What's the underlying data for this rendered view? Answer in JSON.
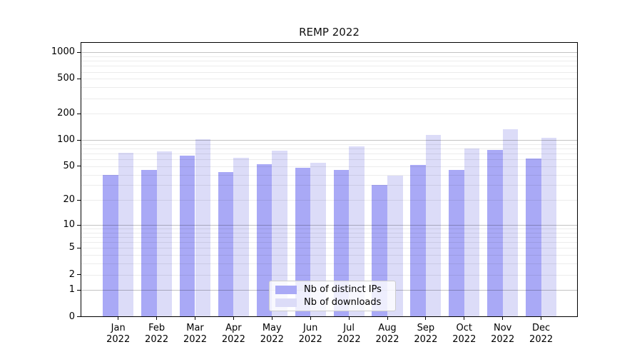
{
  "chart_data": {
    "type": "bar",
    "title": "REMP 2022",
    "categories": [
      "Jan",
      "Feb",
      "Mar",
      "Apr",
      "May",
      "Jun",
      "Jul",
      "Aug",
      "Sep",
      "Oct",
      "Nov",
      "Dec"
    ],
    "year_label": "2022",
    "series": [
      {
        "name": "Nb of distinct IPs",
        "color": "#a9a9f6",
        "values": [
          40,
          45,
          66,
          43,
          53,
          48,
          45,
          30,
          52,
          45,
          77,
          61
        ]
      },
      {
        "name": "Nb of downloads",
        "color": "#dcdcf8",
        "values": [
          71,
          74,
          102,
          62,
          75,
          55,
          85,
          39,
          115,
          80,
          132,
          107
        ]
      }
    ],
    "yscale": "log1p",
    "ylim": [
      0,
      1300
    ],
    "yticks": [
      0,
      1,
      2,
      5,
      10,
      20,
      50,
      100,
      200,
      500,
      1000
    ],
    "major_grid_values": [
      1,
      10,
      100,
      1000
    ],
    "minor_grid_values": [
      2,
      3,
      4,
      5,
      6,
      7,
      8,
      9,
      20,
      30,
      40,
      50,
      60,
      70,
      80,
      90,
      200,
      300,
      400,
      500,
      600,
      700,
      800,
      900
    ],
    "grid": "both",
    "legend_position": "lower-center"
  },
  "colors": {
    "bar_distinct_ips": "#a9a9f6",
    "bar_downloads": "#dcdcf8",
    "major_grid": "#c6c6c6",
    "minor_grid": "#ececec",
    "axis": "#000000",
    "text": "#000000"
  }
}
